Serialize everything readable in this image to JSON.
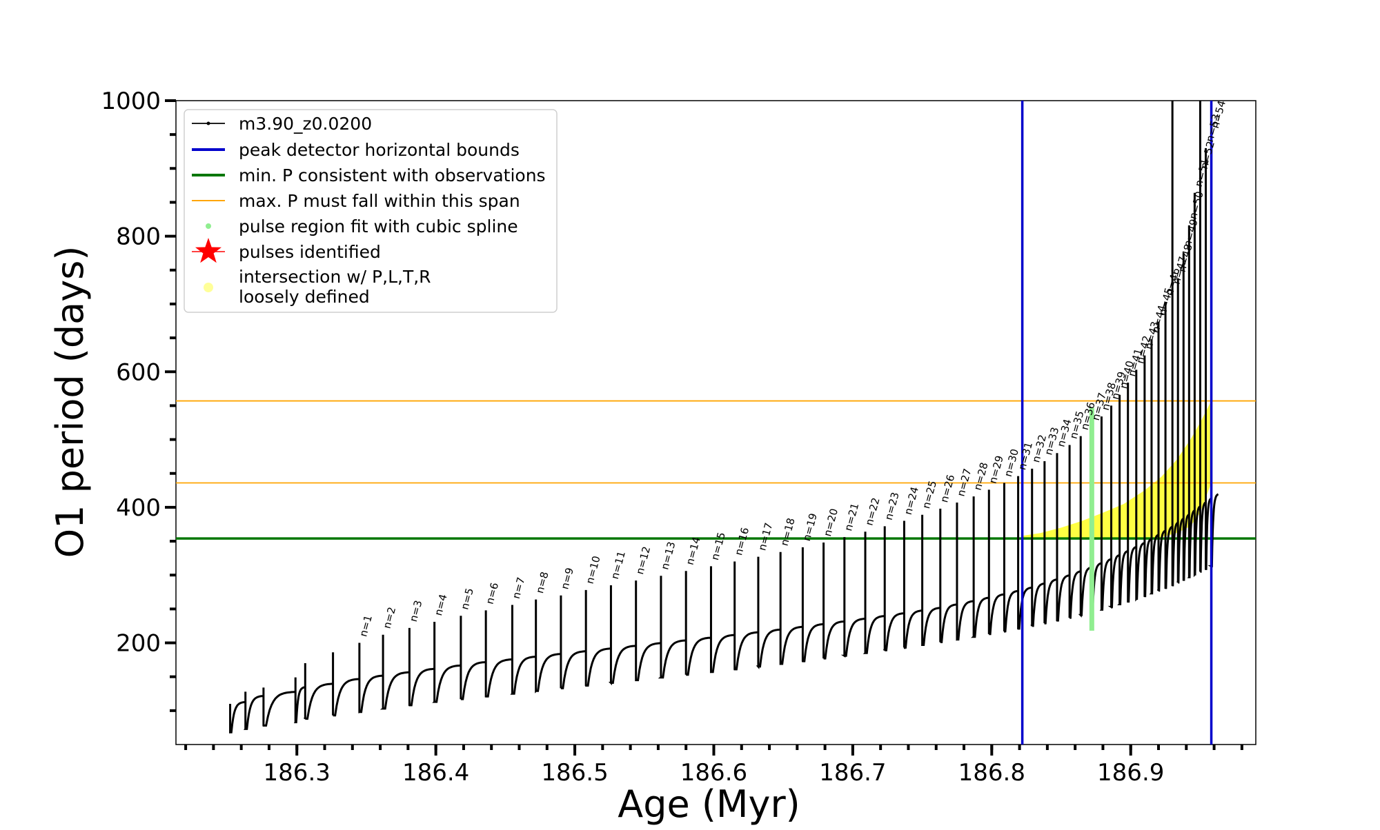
{
  "chart_data": {
    "type": "line",
    "title": "",
    "xlabel": "Age (Myr)",
    "ylabel": "O1 period (days)",
    "xlim": [
      186.213,
      186.99
    ],
    "ylim": [
      50,
      1000
    ],
    "x_ticks": [
      186.3,
      186.4,
      186.5,
      186.6,
      186.7,
      186.8,
      186.9
    ],
    "x_tick_labels": [
      "186.3",
      "186.4",
      "186.5",
      "186.6",
      "186.7",
      "186.8",
      "186.9"
    ],
    "y_ticks": [
      200,
      400,
      600,
      800,
      1000
    ],
    "y_tick_labels": [
      "200",
      "400",
      "600",
      "800",
      "1000"
    ],
    "grid": false,
    "legend_placement": "top-left",
    "legend": [
      {
        "label": "m3.90_z0.0200",
        "symbol": "line-dot",
        "color": "#000000"
      },
      {
        "label": "peak detector horizontal bounds",
        "symbol": "line",
        "color": "#0000cc"
      },
      {
        "label": "min. P consistent with observations",
        "symbol": "line",
        "color": "#007700"
      },
      {
        "label": "max. P must fall within this span",
        "symbol": "thin-line",
        "color": "#ffa500"
      },
      {
        "label": "pulse region fit with cubic spline",
        "symbol": "dot",
        "color": "#90ee90"
      },
      {
        "label": "pulses identified",
        "symbol": "star",
        "color": "#ff0000"
      },
      {
        "label": "intersection w/ P,L,T,R\nloosely defined",
        "symbol": "dot",
        "color": "#ffff99"
      }
    ],
    "series": [
      {
        "name": "m3.90_z0.0200",
        "color": "#000000",
        "pulse_cycles": [
          {
            "start": 186.252,
            "peak": 110,
            "min": 68,
            "plateau": 113
          },
          {
            "start": 186.263,
            "peak": 128,
            "min": 73,
            "plateau": 122
          },
          {
            "start": 186.276,
            "peak": 134,
            "min": 78,
            "plateau": 128
          },
          {
            "start": 186.299,
            "peak": 149,
            "min": 83,
            "plateau": 135
          },
          {
            "start": 186.306,
            "peak": 170,
            "min": 88,
            "plateau": 140
          },
          {
            "start": 186.326,
            "peak": 186,
            "min": 93,
            "plateau": 147
          },
          {
            "start": 186.345,
            "peak": 200,
            "min": 98,
            "plateau": 152
          },
          {
            "start": 186.362,
            "peak": 212,
            "min": 103,
            "plateau": 157
          },
          {
            "start": 186.381,
            "peak": 222,
            "min": 108,
            "plateau": 162
          },
          {
            "start": 186.399,
            "peak": 231,
            "min": 113,
            "plateau": 167
          },
          {
            "start": 186.418,
            "peak": 240,
            "min": 117,
            "plateau": 172
          },
          {
            "start": 186.436,
            "peak": 248,
            "min": 121,
            "plateau": 176
          },
          {
            "start": 186.455,
            "peak": 256,
            "min": 125,
            "plateau": 180
          },
          {
            "start": 186.472,
            "peak": 264,
            "min": 129,
            "plateau": 184
          },
          {
            "start": 186.49,
            "peak": 270,
            "min": 133,
            "plateau": 188
          },
          {
            "start": 186.508,
            "peak": 278,
            "min": 137,
            "plateau": 192
          },
          {
            "start": 186.526,
            "peak": 285,
            "min": 141,
            "plateau": 196
          },
          {
            "start": 186.544,
            "peak": 292,
            "min": 145,
            "plateau": 200
          },
          {
            "start": 186.562,
            "peak": 299,
            "min": 149,
            "plateau": 204
          },
          {
            "start": 186.58,
            "peak": 306,
            "min": 153,
            "plateau": 208
          },
          {
            "start": 186.598,
            "peak": 313,
            "min": 157,
            "plateau": 212
          },
          {
            "start": 186.615,
            "peak": 320,
            "min": 161,
            "plateau": 216
          },
          {
            "start": 186.632,
            "peak": 327,
            "min": 165,
            "plateau": 220
          },
          {
            "start": 186.648,
            "peak": 334,
            "min": 169,
            "plateau": 224
          },
          {
            "start": 186.664,
            "peak": 341,
            "min": 173,
            "plateau": 228
          },
          {
            "start": 186.679,
            "peak": 348,
            "min": 177,
            "plateau": 232
          },
          {
            "start": 186.694,
            "peak": 356,
            "min": 181,
            "plateau": 236
          },
          {
            "start": 186.709,
            "peak": 364,
            "min": 185,
            "plateau": 240
          },
          {
            "start": 186.723,
            "peak": 372,
            "min": 189,
            "plateau": 244
          },
          {
            "start": 186.737,
            "peak": 380,
            "min": 193,
            "plateau": 248
          },
          {
            "start": 186.75,
            "peak": 389,
            "min": 197,
            "plateau": 252
          },
          {
            "start": 186.763,
            "peak": 398,
            "min": 201,
            "plateau": 257
          },
          {
            "start": 186.775,
            "peak": 407,
            "min": 205,
            "plateau": 262
          },
          {
            "start": 186.787,
            "peak": 416,
            "min": 209,
            "plateau": 267
          },
          {
            "start": 186.798,
            "peak": 426,
            "min": 213,
            "plateau": 272
          },
          {
            "start": 186.809,
            "peak": 436,
            "min": 217,
            "plateau": 277
          },
          {
            "start": 186.819,
            "peak": 446,
            "min": 221,
            "plateau": 282
          },
          {
            "start": 186.829,
            "peak": 457,
            "min": 225,
            "plateau": 288
          },
          {
            "start": 186.838,
            "peak": 468,
            "min": 229,
            "plateau": 294
          },
          {
            "start": 186.847,
            "peak": 480,
            "min": 233,
            "plateau": 300
          },
          {
            "start": 186.856,
            "peak": 492,
            "min": 237,
            "plateau": 306
          },
          {
            "start": 186.864,
            "peak": 505,
            "min": 241,
            "plateau": 312
          },
          {
            "start": 186.872,
            "peak": 519,
            "min": 245,
            "plateau": 318
          },
          {
            "start": 186.879,
            "peak": 534,
            "min": 249,
            "plateau": 324
          },
          {
            "start": 186.886,
            "peak": 550,
            "min": 253,
            "plateau": 330
          },
          {
            "start": 186.892,
            "peak": 566,
            "min": 257,
            "plateau": 336
          },
          {
            "start": 186.898,
            "peak": 584,
            "min": 261,
            "plateau": 342
          },
          {
            "start": 186.904,
            "peak": 603,
            "min": 265,
            "plateau": 348
          },
          {
            "start": 186.91,
            "peak": 624,
            "min": 269,
            "plateau": 354
          },
          {
            "start": 186.915,
            "peak": 648,
            "min": 273,
            "plateau": 360
          },
          {
            "start": 186.92,
            "peak": 674,
            "min": 277,
            "plateau": 366
          },
          {
            "start": 186.925,
            "peak": 703,
            "min": 281,
            "plateau": 372
          },
          {
            "start": 186.93,
            "peak": 1000,
            "min": 285,
            "plateau": 378
          },
          {
            "start": 186.934,
            "peak": 738,
            "min": 289,
            "plateau": 384
          },
          {
            "start": 186.938,
            "peak": 775,
            "min": 293,
            "plateau": 390
          },
          {
            "start": 186.942,
            "peak": 816,
            "min": 297,
            "plateau": 396
          },
          {
            "start": 186.946,
            "peak": 864,
            "min": 301,
            "plateau": 402
          },
          {
            "start": 186.95,
            "peak": 1000,
            "min": 305,
            "plateau": 408
          },
          {
            "start": 186.954,
            "peak": 930,
            "min": 309,
            "plateau": 414
          },
          {
            "start": 186.958,
            "peak": 1000,
            "min": 313,
            "plateau": 420
          }
        ]
      }
    ],
    "reference_lines": [
      {
        "name": "peak detector horizontal bounds",
        "orientation": "vertical",
        "value": 186.822,
        "color": "#0000cc"
      },
      {
        "name": "peak detector horizontal bounds",
        "orientation": "vertical",
        "value": 186.958,
        "color": "#0000cc"
      },
      {
        "name": "min. P consistent with observations",
        "orientation": "horizontal",
        "value": 354,
        "color": "#007700"
      },
      {
        "name": "max. P must fall within this span",
        "orientation": "horizontal",
        "value": 436,
        "color": "#ffa500"
      },
      {
        "name": "max. P must fall within this span",
        "orientation": "horizontal",
        "value": 557,
        "color": "#ffa500"
      }
    ],
    "spline_region": {
      "name": "pulse region fit with cubic spline",
      "color": "#90ee90",
      "x": 186.872,
      "y_min": 218,
      "y_max": 547
    },
    "yellow_region": {
      "name": "intersection w/ P,L,T,R\nloosely defined",
      "color": "#ffff22",
      "x": [
        186.822,
        186.835,
        186.85,
        186.865,
        186.88,
        186.895,
        186.91,
        186.922,
        186.933,
        186.943,
        186.95,
        186.958
      ],
      "y_lower": [
        354,
        354,
        354,
        354,
        354,
        354,
        354,
        356,
        362,
        372,
        392,
        436
      ],
      "y_upper": [
        358,
        362,
        370,
        380,
        392,
        405,
        425,
        445,
        470,
        500,
        525,
        557
      ]
    },
    "pulse_labels": [
      {
        "label": "n=1",
        "x": 186.345,
        "y": 200
      },
      {
        "label": "n=2",
        "x": 186.362,
        "y": 212
      },
      {
        "label": "n=3",
        "x": 186.381,
        "y": 222
      },
      {
        "label": "n=4",
        "x": 186.399,
        "y": 231
      },
      {
        "label": "n=5",
        "x": 186.418,
        "y": 240
      },
      {
        "label": "n=6",
        "x": 186.436,
        "y": 248
      },
      {
        "label": "n=7",
        "x": 186.455,
        "y": 256
      },
      {
        "label": "n=8",
        "x": 186.472,
        "y": 264
      },
      {
        "label": "n=9",
        "x": 186.49,
        "y": 270
      },
      {
        "label": "n=10",
        "x": 186.508,
        "y": 278
      },
      {
        "label": "n=11",
        "x": 186.526,
        "y": 285
      },
      {
        "label": "n=12",
        "x": 186.544,
        "y": 292
      },
      {
        "label": "n=13",
        "x": 186.562,
        "y": 299
      },
      {
        "label": "n=14",
        "x": 186.58,
        "y": 306
      },
      {
        "label": "n=15",
        "x": 186.598,
        "y": 313
      },
      {
        "label": "n=16",
        "x": 186.615,
        "y": 320
      },
      {
        "label": "n=17",
        "x": 186.632,
        "y": 327
      },
      {
        "label": "n=18",
        "x": 186.648,
        "y": 334
      },
      {
        "label": "n=19",
        "x": 186.664,
        "y": 341
      },
      {
        "label": "n=20",
        "x": 186.679,
        "y": 348
      },
      {
        "label": "n=21",
        "x": 186.694,
        "y": 356
      },
      {
        "label": "n=22",
        "x": 186.709,
        "y": 364
      },
      {
        "label": "n=23",
        "x": 186.723,
        "y": 372
      },
      {
        "label": "n=24",
        "x": 186.737,
        "y": 380
      },
      {
        "label": "n=25",
        "x": 186.75,
        "y": 389
      },
      {
        "label": "n=26",
        "x": 186.763,
        "y": 398
      },
      {
        "label": "n=27",
        "x": 186.775,
        "y": 407
      },
      {
        "label": "n=28",
        "x": 186.787,
        "y": 416
      },
      {
        "label": "n=29",
        "x": 186.798,
        "y": 426
      },
      {
        "label": "n=30",
        "x": 186.809,
        "y": 436
      },
      {
        "label": "n=31",
        "x": 186.819,
        "y": 446
      },
      {
        "label": "n=32",
        "x": 186.829,
        "y": 457
      },
      {
        "label": "n=33",
        "x": 186.838,
        "y": 468
      },
      {
        "label": "n=34",
        "x": 186.847,
        "y": 480
      },
      {
        "label": "n=35",
        "x": 186.856,
        "y": 492
      },
      {
        "label": "n=36",
        "x": 186.864,
        "y": 505
      },
      {
        "label": "n=37",
        "x": 186.872,
        "y": 519
      },
      {
        "label": "n=38",
        "x": 186.879,
        "y": 534
      },
      {
        "label": "n=39",
        "x": 186.886,
        "y": 550
      },
      {
        "label": "n=40",
        "x": 186.892,
        "y": 566
      },
      {
        "label": "n=41",
        "x": 186.898,
        "y": 584
      },
      {
        "label": "n=42",
        "x": 186.904,
        "y": 603
      },
      {
        "label": "n=43",
        "x": 186.91,
        "y": 624
      },
      {
        "label": "n=44",
        "x": 186.915,
        "y": 648
      },
      {
        "label": "n=45",
        "x": 186.92,
        "y": 674
      },
      {
        "label": "n=46",
        "x": 186.925,
        "y": 703
      },
      {
        "label": "n=47",
        "x": 186.93,
        "y": 720
      },
      {
        "label": "n=48",
        "x": 186.934,
        "y": 738
      },
      {
        "label": "n=49",
        "x": 186.938,
        "y": 775
      },
      {
        "label": "n=50",
        "x": 186.942,
        "y": 816
      },
      {
        "label": "n=51",
        "x": 186.946,
        "y": 864
      },
      {
        "label": "n=52",
        "x": 186.95,
        "y": 890
      },
      {
        "label": "n=53",
        "x": 186.954,
        "y": 930
      },
      {
        "label": "n=54",
        "x": 186.958,
        "y": 950
      }
    ]
  }
}
